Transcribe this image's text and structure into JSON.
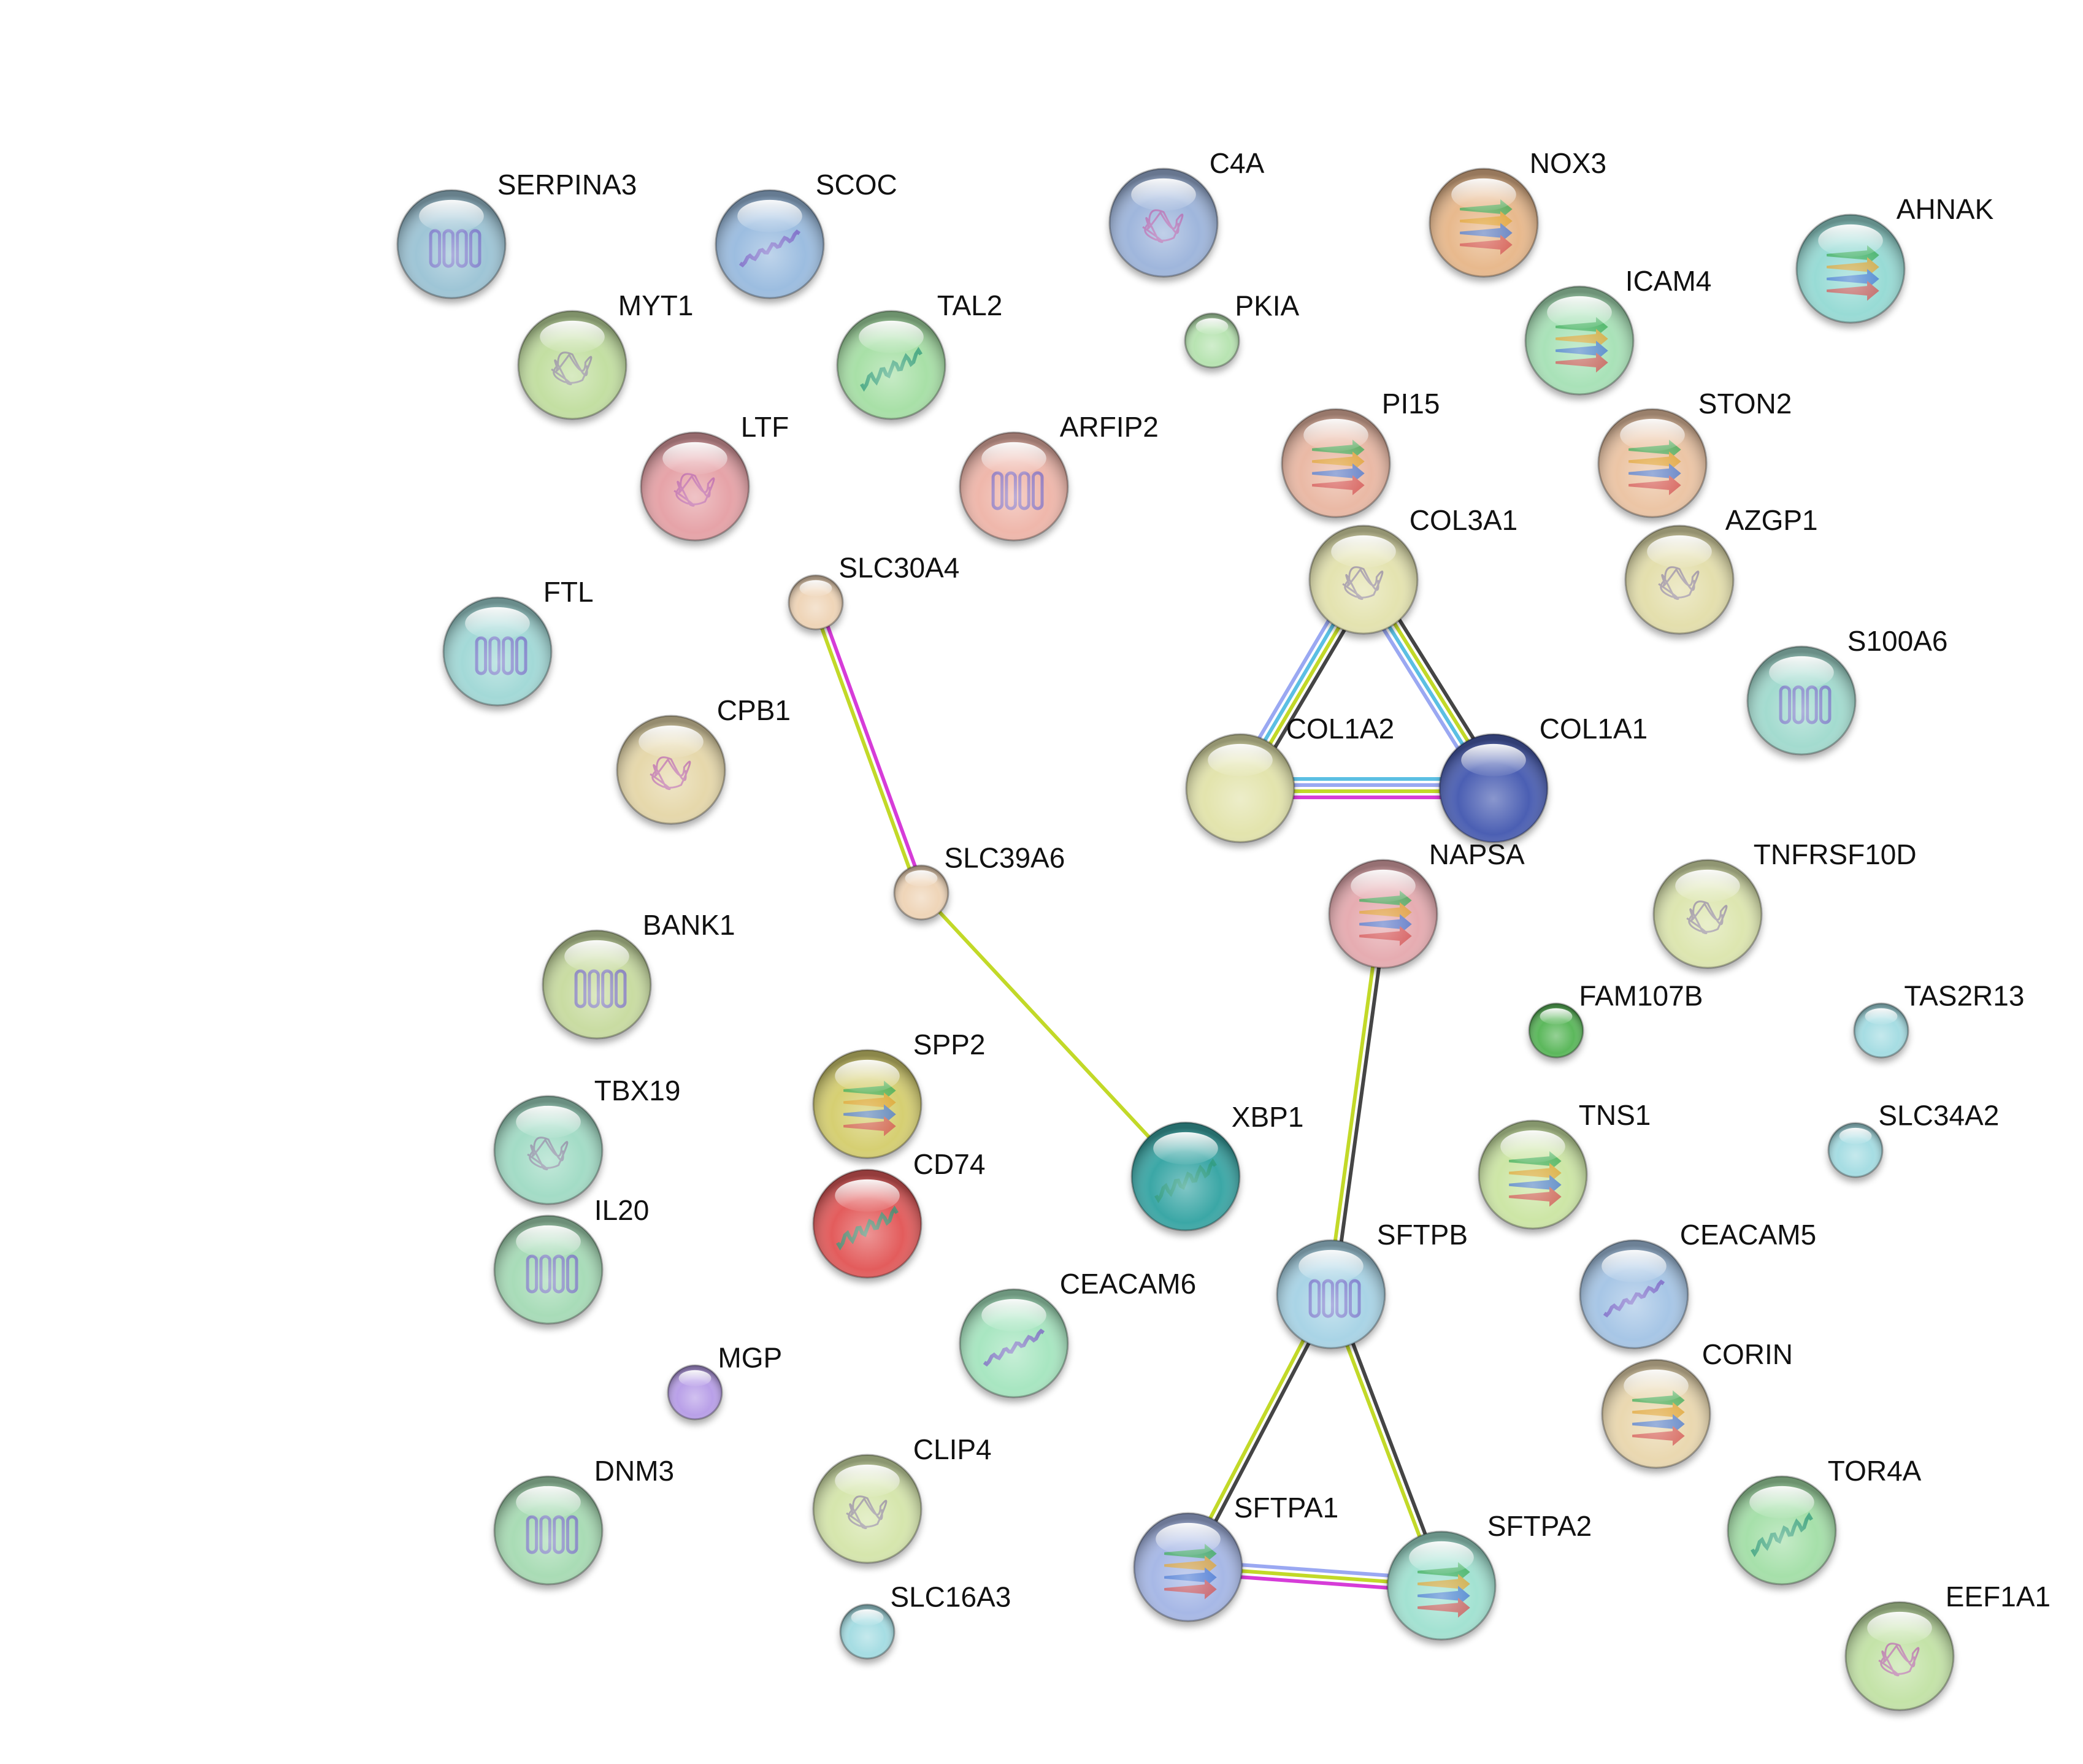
{
  "colors": {
    "edge_pink": "#d63cd8",
    "edge_lime": "#c2d928",
    "edge_dark": "#454545",
    "edge_blue": "#9aa8f2",
    "edge_cyan": "#5bbfe3",
    "edge_green": "#7ac96a"
  },
  "nodes": [
    {
      "id": "SERPINA3",
      "label": "SERPINA3",
      "color": "#9ec5d6",
      "size": "large",
      "icon": "helical-protein-icon"
    },
    {
      "id": "SCOC",
      "label": "SCOC",
      "color": "#9cbde0",
      "size": "large",
      "icon": "coil-helix-icon"
    },
    {
      "id": "C4A",
      "label": "C4A",
      "color": "#9fb6dc",
      "size": "large",
      "icon": "complex-protein-icon"
    },
    {
      "id": "NOX3",
      "label": "NOX3",
      "color": "#e8b98d",
      "size": "large",
      "icon": "beta-sheet-protein-icon"
    },
    {
      "id": "AHNAK",
      "label": "AHNAK",
      "color": "#98dbd5",
      "size": "large",
      "icon": "beta-sheet-protein-icon"
    },
    {
      "id": "MYT1",
      "label": "MYT1",
      "color": "#c3dfa2",
      "size": "large",
      "icon": "loop-protein-icon"
    },
    {
      "id": "TAL2",
      "label": "TAL2",
      "color": "#a8e0a7",
      "size": "large",
      "icon": "helix-protein-icon"
    },
    {
      "id": "PKIA",
      "label": "PKIA",
      "color": "#b8e4b2",
      "size": "small",
      "icon": "none"
    },
    {
      "id": "ICAM4",
      "label": "ICAM4",
      "color": "#a9e2b8",
      "size": "large",
      "icon": "beta-sheet-protein-icon"
    },
    {
      "id": "LTF",
      "label": "LTF",
      "color": "#e6a3a8",
      "size": "large",
      "icon": "complex-protein-icon"
    },
    {
      "id": "ARFIP2",
      "label": "ARFIP2",
      "color": "#efb7ab",
      "size": "large",
      "icon": "helix-bundle-icon"
    },
    {
      "id": "PI15",
      "label": "PI15",
      "color": "#eab9a5",
      "size": "large",
      "icon": "beta-sheet-protein-icon"
    },
    {
      "id": "STON2",
      "label": "STON2",
      "color": "#ecc5a5",
      "size": "large",
      "icon": "beta-sheet-protein-icon"
    },
    {
      "id": "COL3A1",
      "label": "COL3A1",
      "color": "#e4e3b0",
      "size": "large",
      "icon": "loop-protein-icon"
    },
    {
      "id": "AZGP1",
      "label": "AZGP1",
      "color": "#e4dfad",
      "size": "large",
      "icon": "loop-protein-icon"
    },
    {
      "id": "FTL",
      "label": "FTL",
      "color": "#a3d9d7",
      "size": "large",
      "icon": "helical-protein-icon"
    },
    {
      "id": "SLC30A4",
      "label": "SLC30A4",
      "color": "#efd5b8",
      "size": "small",
      "icon": "none"
    },
    {
      "id": "S100A6",
      "label": "S100A6",
      "color": "#a3dbcf",
      "size": "large",
      "icon": "helical-protein-icon"
    },
    {
      "id": "CPB1",
      "label": "CPB1",
      "color": "#e6d8ab",
      "size": "large",
      "icon": "complex-protein-icon"
    },
    {
      "id": "COL1A2",
      "label": "COL1A2",
      "color": "#e3e4ad",
      "size": "large",
      "icon": "none"
    },
    {
      "id": "COL1A1",
      "label": "COL1A1",
      "color": "#4c5fb3",
      "size": "large",
      "icon": "none"
    },
    {
      "id": "SLC39A6",
      "label": "SLC39A6",
      "color": "#efd5b8",
      "size": "small",
      "icon": "none"
    },
    {
      "id": "NAPSA",
      "label": "NAPSA",
      "color": "#e6acb1",
      "size": "large",
      "icon": "beta-sheet-protein-icon"
    },
    {
      "id": "TNFRSF10D",
      "label": "TNFRSF10D",
      "color": "#dde6b0",
      "size": "large",
      "icon": "loop-protein-icon"
    },
    {
      "id": "BANK1",
      "label": "BANK1",
      "color": "#c9dca2",
      "size": "large",
      "icon": "helical-protein-icon"
    },
    {
      "id": "FAM107B",
      "label": "FAM107B",
      "color": "#5cb85c",
      "size": "small",
      "icon": "none"
    },
    {
      "id": "TAS2R13",
      "label": "TAS2R13",
      "color": "#a6dde3",
      "size": "small",
      "icon": "none"
    },
    {
      "id": "SPP2",
      "label": "SPP2",
      "color": "#d6cf72",
      "size": "large",
      "icon": "beta-sheet-protein-icon"
    },
    {
      "id": "TBX19",
      "label": "TBX19",
      "color": "#a3dcc6",
      "size": "large",
      "icon": "loop-protein-icon"
    },
    {
      "id": "XBP1",
      "label": "XBP1",
      "color": "#3aa7a6",
      "size": "large",
      "icon": "helix-protein-icon"
    },
    {
      "id": "TNS1",
      "label": "TNS1",
      "color": "#cde6a6",
      "size": "large",
      "icon": "beta-sheet-protein-icon"
    },
    {
      "id": "SLC34A2",
      "label": "SLC34A2",
      "color": "#a6dde3",
      "size": "small",
      "icon": "none"
    },
    {
      "id": "CD74",
      "label": "CD74",
      "color": "#e35b5b",
      "size": "large",
      "icon": "helix-protein-icon"
    },
    {
      "id": "IL20",
      "label": "IL20",
      "color": "#a8dcb8",
      "size": "large",
      "icon": "helical-protein-icon"
    },
    {
      "id": "SFTPB",
      "label": "SFTPB",
      "color": "#a9d4e6",
      "size": "large",
      "icon": "helical-protein-icon"
    },
    {
      "id": "CEACAM5",
      "label": "CEACAM5",
      "color": "#a7c6e6",
      "size": "large",
      "icon": "coil-helix-icon"
    },
    {
      "id": "CEACAM6",
      "label": "CEACAM6",
      "color": "#a8e6c1",
      "size": "large",
      "icon": "coil-helix-icon"
    },
    {
      "id": "MGP",
      "label": "MGP",
      "color": "#b9a0e8",
      "size": "small",
      "icon": "none"
    },
    {
      "id": "CORIN",
      "label": "CORIN",
      "color": "#ead8b0",
      "size": "large",
      "icon": "beta-sheet-protein-icon"
    },
    {
      "id": "CLIP4",
      "label": "CLIP4",
      "color": "#d6e6ad",
      "size": "large",
      "icon": "loop-protein-icon"
    },
    {
      "id": "DNM3",
      "label": "DNM3",
      "color": "#a9dcb5",
      "size": "large",
      "icon": "helical-protein-icon"
    },
    {
      "id": "TOR4A",
      "label": "TOR4A",
      "color": "#a6e0aa",
      "size": "large",
      "icon": "helix-protein-icon"
    },
    {
      "id": "SFTPA1",
      "label": "SFTPA1",
      "color": "#a7b8e6",
      "size": "large",
      "icon": "beta-sheet-protein-icon"
    },
    {
      "id": "SFTPA2",
      "label": "SFTPA2",
      "color": "#a3e2d2",
      "size": "large",
      "icon": "beta-sheet-protein-icon"
    },
    {
      "id": "SLC16A3",
      "label": "SLC16A3",
      "color": "#a6dde3",
      "size": "small",
      "icon": "none"
    },
    {
      "id": "EEF1A1",
      "label": "EEF1A1",
      "color": "#c4e3a8",
      "size": "large",
      "icon": "complex-protein-icon"
    }
  ],
  "edges": [
    {
      "source": "SLC30A4",
      "target": "SLC39A6",
      "evidence": [
        "edge_pink",
        "edge_lime"
      ]
    },
    {
      "source": "SLC39A6",
      "target": "XBP1",
      "evidence": [
        "edge_lime"
      ]
    },
    {
      "source": "COL3A1",
      "target": "COL1A2",
      "evidence": [
        "edge_dark",
        "edge_lime",
        "edge_cyan",
        "edge_blue"
      ]
    },
    {
      "source": "COL3A1",
      "target": "COL1A1",
      "evidence": [
        "edge_dark",
        "edge_lime",
        "edge_cyan",
        "edge_blue"
      ]
    },
    {
      "source": "COL1A2",
      "target": "COL1A1",
      "evidence": [
        "edge_cyan",
        "edge_blue",
        "edge_lime",
        "edge_pink"
      ]
    },
    {
      "source": "NAPSA",
      "target": "SFTPB",
      "evidence": [
        "edge_dark",
        "edge_lime"
      ]
    },
    {
      "source": "SFTPB",
      "target": "SFTPA1",
      "evidence": [
        "edge_dark",
        "edge_lime"
      ]
    },
    {
      "source": "SFTPB",
      "target": "SFTPA2",
      "evidence": [
        "edge_dark",
        "edge_lime"
      ]
    },
    {
      "source": "SFTPA1",
      "target": "SFTPA2",
      "evidence": [
        "edge_blue",
        "edge_lime",
        "edge_pink"
      ]
    }
  ]
}
